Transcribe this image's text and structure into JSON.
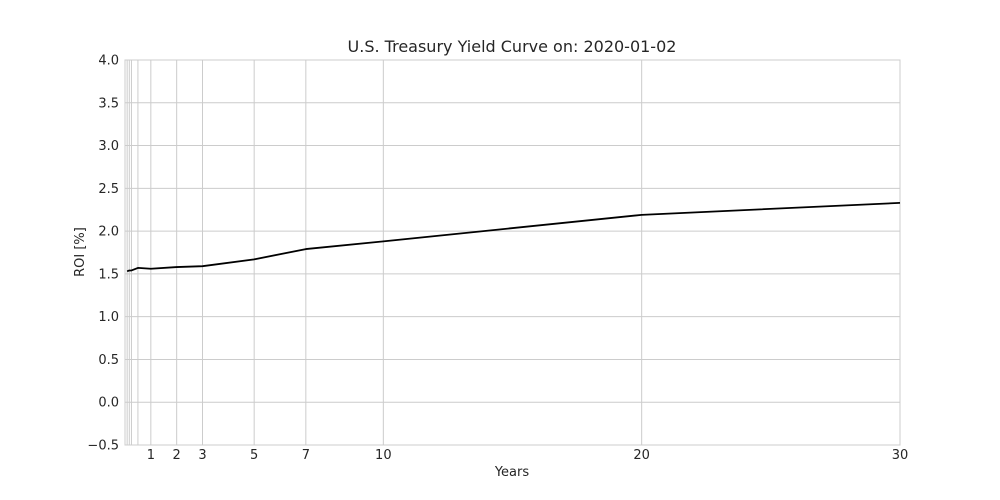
{
  "chart_data": {
    "type": "line",
    "title": "U.S. Treasury Yield Curve on: 2020-01-02",
    "xlabel": "Years",
    "ylabel": "ROI [%]",
    "xlim": [
      0,
      30
    ],
    "ylim": [
      -0.5,
      4.0
    ],
    "grid": true,
    "x_ticks": [
      {
        "value": 1,
        "label": "1"
      },
      {
        "value": 2,
        "label": "2"
      },
      {
        "value": 3,
        "label": "3"
      },
      {
        "value": 5,
        "label": "5"
      },
      {
        "value": 7,
        "label": "7"
      },
      {
        "value": 10,
        "label": "10"
      },
      {
        "value": 20,
        "label": "20"
      },
      {
        "value": 30,
        "label": "30"
      }
    ],
    "x_minor_grid": [
      0.0833,
      0.1667,
      0.25,
      0.5
    ],
    "y_ticks": [
      {
        "value": -0.5,
        "label": "−0.5"
      },
      {
        "value": 0.0,
        "label": "0.0"
      },
      {
        "value": 0.5,
        "label": "0.5"
      },
      {
        "value": 1.0,
        "label": "1.0"
      },
      {
        "value": 1.5,
        "label": "1.5"
      },
      {
        "value": 2.0,
        "label": "2.0"
      },
      {
        "value": 2.5,
        "label": "2.5"
      },
      {
        "value": 3.0,
        "label": "3.0"
      },
      {
        "value": 3.5,
        "label": "3.5"
      },
      {
        "value": 4.0,
        "label": "4.0"
      }
    ],
    "series": [
      {
        "color": "#000000",
        "points": [
          {
            "x": 0.0833,
            "y": 1.53
          },
          {
            "x": 0.1667,
            "y": 1.54
          },
          {
            "x": 0.25,
            "y": 1.54
          },
          {
            "x": 0.5,
            "y": 1.57
          },
          {
            "x": 1,
            "y": 1.56
          },
          {
            "x": 2,
            "y": 1.58
          },
          {
            "x": 3,
            "y": 1.59
          },
          {
            "x": 5,
            "y": 1.67
          },
          {
            "x": 7,
            "y": 1.79
          },
          {
            "x": 10,
            "y": 1.88
          },
          {
            "x": 20,
            "y": 2.19
          },
          {
            "x": 30,
            "y": 2.33
          }
        ]
      }
    ]
  }
}
